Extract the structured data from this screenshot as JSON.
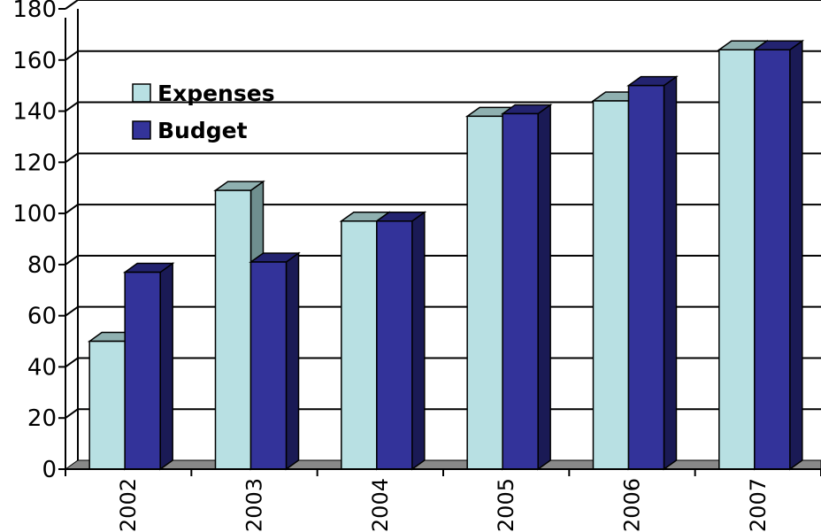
{
  "chart_data": {
    "type": "bar",
    "categories": [
      "2002",
      "2003",
      "2004",
      "2005",
      "2006",
      "2007"
    ],
    "series": [
      {
        "name": "Expenses",
        "values": [
          50,
          109,
          97,
          138,
          144,
          164
        ]
      },
      {
        "name": "Budget",
        "values": [
          77,
          81,
          97,
          139,
          150,
          164
        ]
      }
    ],
    "ylim": [
      0,
      180
    ],
    "yticks": [
      "0",
      "20",
      "40",
      "60",
      "80",
      "100",
      "120",
      "140",
      "160",
      "180"
    ],
    "grid": true,
    "three_d": true,
    "legend_position": "top-left, inside plot",
    "colors": {
      "Expenses": {
        "front": "#b8e0e3",
        "top": "#8fb0b0",
        "side": "#6f8f8f"
      },
      "Budget": {
        "front": "#33339a",
        "top": "#232370",
        "side": "#1a1a55"
      },
      "floor": "#888888"
    }
  }
}
